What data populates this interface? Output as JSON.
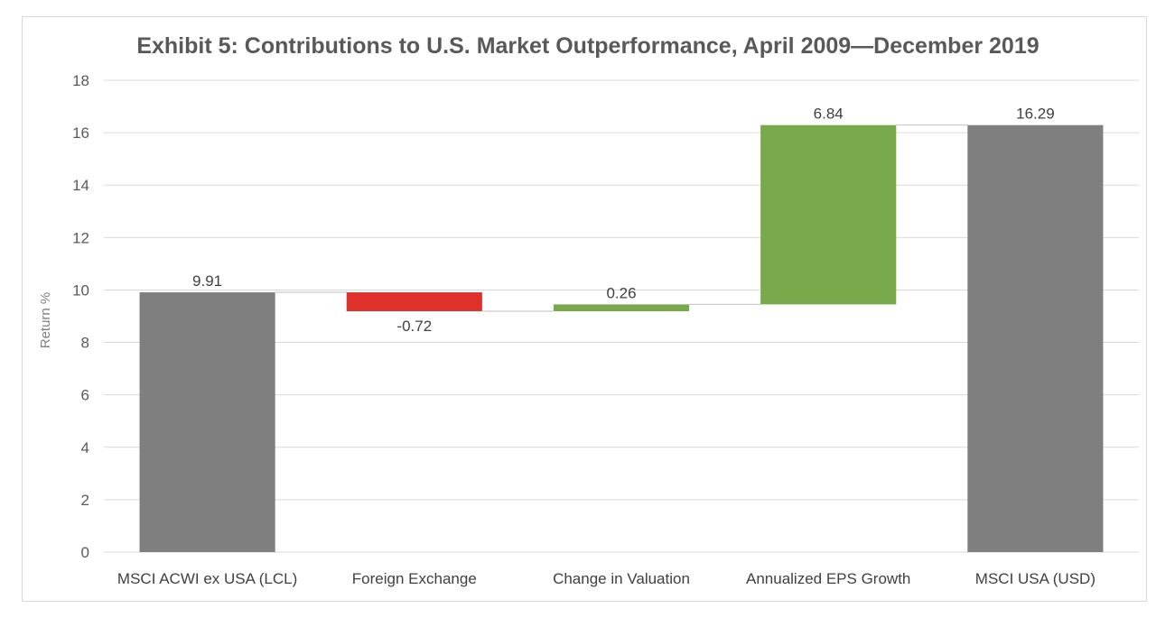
{
  "chart_data": {
    "type": "bar",
    "subtype": "waterfall",
    "title": "Exhibit 5: Contributions to U.S. Market Outperformance, April 2009—December 2019",
    "xlabel": "",
    "ylabel": "Return %",
    "ylim": [
      0,
      18
    ],
    "yticks": [
      0,
      2,
      4,
      6,
      8,
      10,
      12,
      14,
      16,
      18
    ],
    "grid": true,
    "categories": [
      "MSCI ACWI ex USA (LCL)",
      "Foreign Exchange",
      "Change in Valuation",
      "Annualized EPS Growth",
      "MSCI USA (USD)"
    ],
    "values": [
      9.91,
      -0.72,
      0.26,
      6.84,
      16.29
    ],
    "labels": [
      "9.91",
      "-0.72",
      "0.26",
      "6.84",
      "16.29"
    ],
    "bar_kinds": [
      "total",
      "delta",
      "delta",
      "delta",
      "total"
    ],
    "colors": {
      "total": "#7f7f7f",
      "negative": "#e0302b",
      "positive": "#78a94b"
    }
  }
}
